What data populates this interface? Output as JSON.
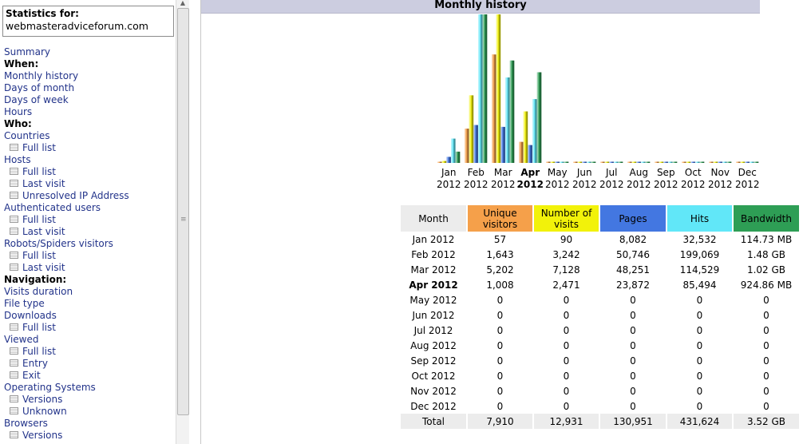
{
  "sidebar": {
    "stat_title": "Statistics for:",
    "stat_site": "webmasteradviceforum.com",
    "items": [
      {
        "type": "link",
        "label": "Summary",
        "name": "summary"
      },
      {
        "type": "header",
        "label": "When:",
        "name": "when"
      },
      {
        "type": "link",
        "label": "Monthly history",
        "name": "monthly-history"
      },
      {
        "type": "link",
        "label": "Days of month",
        "name": "days-of-month"
      },
      {
        "type": "link",
        "label": "Days of week",
        "name": "days-of-week"
      },
      {
        "type": "link",
        "label": "Hours",
        "name": "hours"
      },
      {
        "type": "header",
        "label": "Who:",
        "name": "who"
      },
      {
        "type": "link",
        "label": "Countries",
        "name": "countries"
      },
      {
        "type": "sub",
        "label": "Full list",
        "name": "countries-full-list"
      },
      {
        "type": "link",
        "label": "Hosts",
        "name": "hosts"
      },
      {
        "type": "sub",
        "label": "Full list",
        "name": "hosts-full-list"
      },
      {
        "type": "sub",
        "label": "Last visit",
        "name": "hosts-last-visit"
      },
      {
        "type": "sub",
        "label": "Unresolved IP Address",
        "name": "unresolved-ip"
      },
      {
        "type": "link",
        "label": "Authenticated users",
        "name": "authenticated-users"
      },
      {
        "type": "sub",
        "label": "Full list",
        "name": "auth-full-list"
      },
      {
        "type": "sub",
        "label": "Last visit",
        "name": "auth-last-visit"
      },
      {
        "type": "link",
        "label": "Robots/Spiders visitors",
        "name": "robots-spiders"
      },
      {
        "type": "sub",
        "label": "Full list",
        "name": "robots-full-list"
      },
      {
        "type": "sub",
        "label": "Last visit",
        "name": "robots-last-visit"
      },
      {
        "type": "header",
        "label": "Navigation:",
        "name": "navigation"
      },
      {
        "type": "link",
        "label": "Visits duration",
        "name": "visits-duration"
      },
      {
        "type": "link",
        "label": "File type",
        "name": "file-type"
      },
      {
        "type": "link",
        "label": "Downloads",
        "name": "downloads"
      },
      {
        "type": "sub",
        "label": "Full list",
        "name": "downloads-full-list"
      },
      {
        "type": "link",
        "label": "Viewed",
        "name": "viewed"
      },
      {
        "type": "sub",
        "label": "Full list",
        "name": "viewed-full-list"
      },
      {
        "type": "sub",
        "label": "Entry",
        "name": "viewed-entry"
      },
      {
        "type": "sub",
        "label": "Exit",
        "name": "viewed-exit"
      },
      {
        "type": "link",
        "label": "Operating Systems",
        "name": "operating-systems"
      },
      {
        "type": "sub",
        "label": "Versions",
        "name": "os-versions"
      },
      {
        "type": "sub",
        "label": "Unknown",
        "name": "os-unknown"
      },
      {
        "type": "link",
        "label": "Browsers",
        "name": "browsers"
      },
      {
        "type": "sub",
        "label": "Versions",
        "name": "browsers-versions"
      }
    ]
  },
  "main": {
    "title": "Monthly history"
  },
  "colors": {
    "unique": "#f5a04a",
    "visits": "#f2f20a",
    "pages": "#4377e1",
    "hits": "#61e7f8",
    "bandwidth": "#2e9e55",
    "header_month": "#ececec",
    "title_bg": "#cccde0"
  },
  "table": {
    "headers": [
      "Month",
      "Unique visitors",
      "Number of visits",
      "Pages",
      "Hits",
      "Bandwidth"
    ],
    "rows": [
      [
        "Jan 2012",
        "57",
        "90",
        "8,082",
        "32,532",
        "114.73 MB"
      ],
      [
        "Feb 2012",
        "1,643",
        "3,242",
        "50,746",
        "199,069",
        "1.48 GB"
      ],
      [
        "Mar 2012",
        "5,202",
        "7,128",
        "48,251",
        "114,529",
        "1.02 GB"
      ],
      [
        "Apr 2012",
        "1,008",
        "2,471",
        "23,872",
        "85,494",
        "924.86 MB"
      ],
      [
        "May 2012",
        "0",
        "0",
        "0",
        "0",
        "0"
      ],
      [
        "Jun 2012",
        "0",
        "0",
        "0",
        "0",
        "0"
      ],
      [
        "Jul 2012",
        "0",
        "0",
        "0",
        "0",
        "0"
      ],
      [
        "Aug 2012",
        "0",
        "0",
        "0",
        "0",
        "0"
      ],
      [
        "Sep 2012",
        "0",
        "0",
        "0",
        "0",
        "0"
      ],
      [
        "Oct 2012",
        "0",
        "0",
        "0",
        "0",
        "0"
      ],
      [
        "Nov 2012",
        "0",
        "0",
        "0",
        "0",
        "0"
      ],
      [
        "Dec 2012",
        "0",
        "0",
        "0",
        "0",
        "0"
      ]
    ],
    "current_month": "Apr 2012",
    "total": [
      "Total",
      "7,910",
      "12,931",
      "130,951",
      "431,624",
      "3.52 GB"
    ]
  },
  "chart_data": {
    "type": "bar",
    "categories": [
      "Jan 2012",
      "Feb 2012",
      "Mar 2012",
      "Apr 2012",
      "May 2012",
      "Jun 2012",
      "Jul 2012",
      "Aug 2012",
      "Sep 2012",
      "Oct 2012",
      "Nov 2012",
      "Dec 2012"
    ],
    "tick_labels": [
      [
        "Jan",
        "2012"
      ],
      [
        "Feb",
        "2012"
      ],
      [
        "Mar",
        "2012"
      ],
      [
        "Apr",
        "2012"
      ],
      [
        "May",
        "2012"
      ],
      [
        "Jun",
        "2012"
      ],
      [
        "Jul",
        "2012"
      ],
      [
        "Aug",
        "2012"
      ],
      [
        "Sep",
        "2012"
      ],
      [
        "Oct",
        "2012"
      ],
      [
        "Nov",
        "2012"
      ],
      [
        "Dec",
        "2012"
      ]
    ],
    "highlighted_category": "Apr 2012",
    "series": [
      {
        "name": "Unique visitors",
        "values": [
          57,
          1643,
          5202,
          1008,
          0,
          0,
          0,
          0,
          0,
          0,
          0,
          0
        ],
        "color": "#f5a04a"
      },
      {
        "name": "Number of visits",
        "values": [
          90,
          3242,
          7128,
          2471,
          0,
          0,
          0,
          0,
          0,
          0,
          0,
          0
        ],
        "color": "#f2f20a"
      },
      {
        "name": "Pages",
        "values": [
          8082,
          50746,
          48251,
          23872,
          0,
          0,
          0,
          0,
          0,
          0,
          0,
          0
        ],
        "color": "#4377e1"
      },
      {
        "name": "Hits",
        "values": [
          32532,
          199069,
          114529,
          85494,
          0,
          0,
          0,
          0,
          0,
          0,
          0,
          0
        ],
        "color": "#61e7f8"
      },
      {
        "name": "Bandwidth",
        "values": [
          114.73,
          1515.52,
          1044.48,
          924.86,
          0,
          0,
          0,
          0,
          0,
          0,
          0,
          0
        ],
        "unit": "MB",
        "color": "#2e9e55"
      }
    ],
    "grid": false,
    "legend": "none"
  }
}
